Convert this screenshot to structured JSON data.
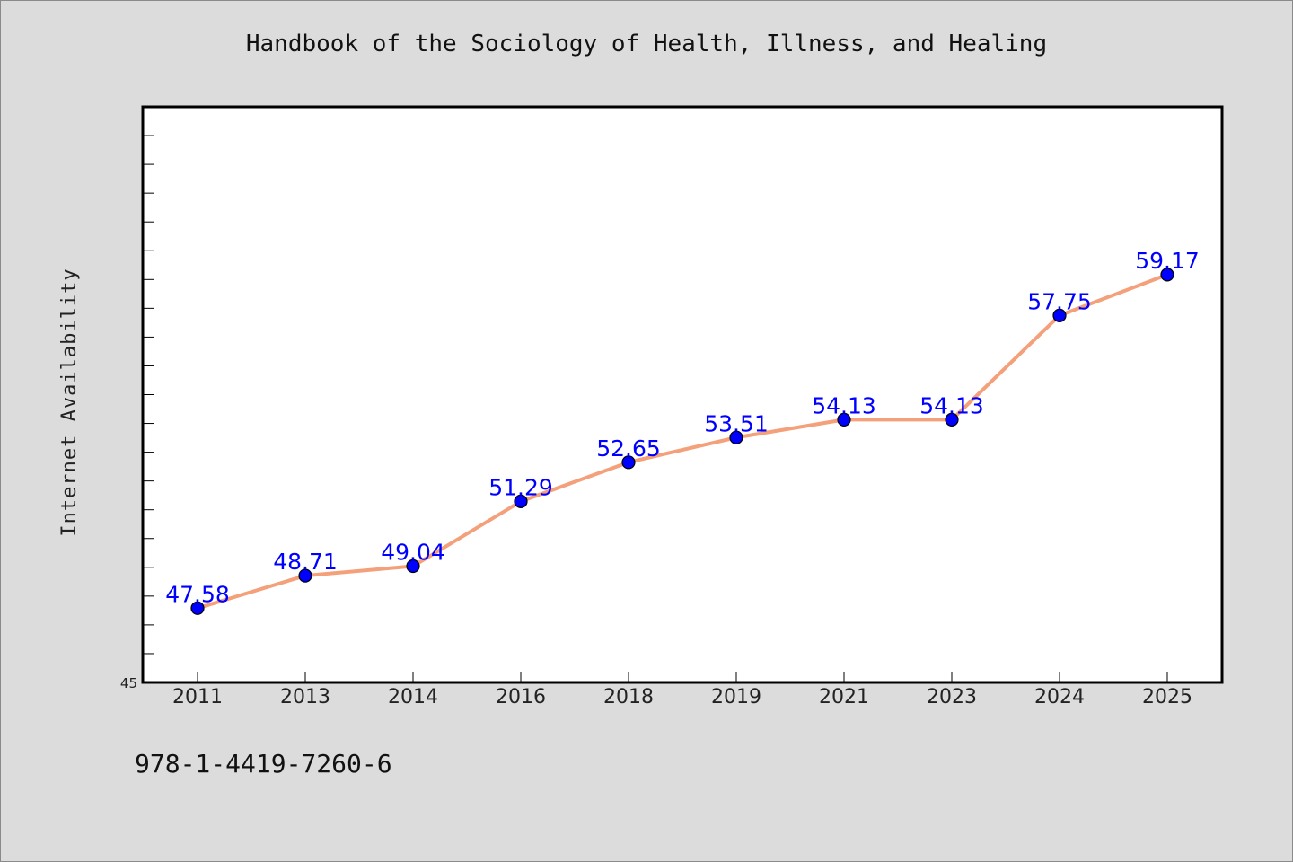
{
  "chart_data": {
    "type": "line",
    "title": "Handbook of the Sociology of Health, Illness, and Healing",
    "ylabel": "Internet Availability",
    "xlabel": "",
    "footer_text": "978-1-4419-7260-6",
    "categories": [
      "2011",
      "2013",
      "2014",
      "2016",
      "2018",
      "2019",
      "2021",
      "2023",
      "2024",
      "2025"
    ],
    "series": [
      {
        "values": [
          47.58,
          48.71,
          49.04,
          51.29,
          52.65,
          53.51,
          54.13,
          54.13,
          57.75,
          59.17
        ],
        "labels": [
          "47.58",
          "48.71",
          "49.04",
          "51.29",
          "52.65",
          "53.51",
          "54.13",
          "54.13",
          "57.75",
          "59.17"
        ],
        "line_color": "#f4a07a",
        "marker_color": "#0000ff"
      }
    ],
    "ylim": [
      45,
      65
    ],
    "y_tick_labels": [
      "45"
    ],
    "grid": false,
    "legend": "none",
    "background": "#dcdcdc",
    "plot_background": "#ffffff"
  }
}
